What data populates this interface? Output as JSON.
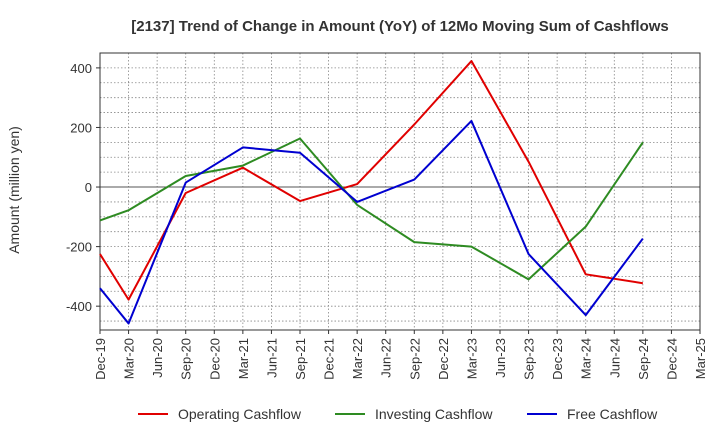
{
  "chart_data": {
    "type": "line",
    "title": "[2137]  Trend of Change in Amount (YoY) of 12Mo Moving Sum of Cashflows",
    "xlabel": "",
    "ylabel": "Amount (million yen)",
    "ylim": [
      -480,
      450
    ],
    "yticks": [
      400,
      200,
      0,
      -200,
      -400
    ],
    "grid": true,
    "legend_position": "bottom",
    "categories": [
      "Dec-19",
      "Mar-20",
      "Jun-20",
      "Sep-20",
      "Dec-20",
      "Mar-21",
      "Jun-21",
      "Sep-21",
      "Dec-21",
      "Mar-22",
      "Jun-22",
      "Sep-22",
      "Dec-22",
      "Mar-23",
      "Jun-23",
      "Sep-23",
      "Dec-23",
      "Mar-24",
      "Jun-24",
      "Sep-24",
      "Dec-24",
      "Mar-25"
    ],
    "series": [
      {
        "name": "Operating Cashflow",
        "color": "#e00000",
        "values": [
          -225,
          -378,
          null,
          -20,
          null,
          65,
          null,
          -47,
          null,
          10,
          null,
          210,
          null,
          423,
          null,
          85,
          null,
          -293,
          null,
          -323,
          null,
          null
        ]
      },
      {
        "name": "Investing Cashflow",
        "color": "#2e8b22",
        "values": [
          -112,
          -78,
          null,
          37,
          null,
          72,
          null,
          163,
          null,
          -60,
          null,
          -185,
          null,
          -200,
          null,
          -310,
          null,
          -133,
          null,
          150,
          null,
          null
        ]
      },
      {
        "name": "Free Cashflow",
        "color": "#0000d0",
        "values": [
          -340,
          -458,
          null,
          15,
          null,
          133,
          null,
          115,
          null,
          -50,
          null,
          25,
          null,
          222,
          null,
          -225,
          null,
          -430,
          null,
          -173,
          null,
          null
        ]
      }
    ]
  }
}
